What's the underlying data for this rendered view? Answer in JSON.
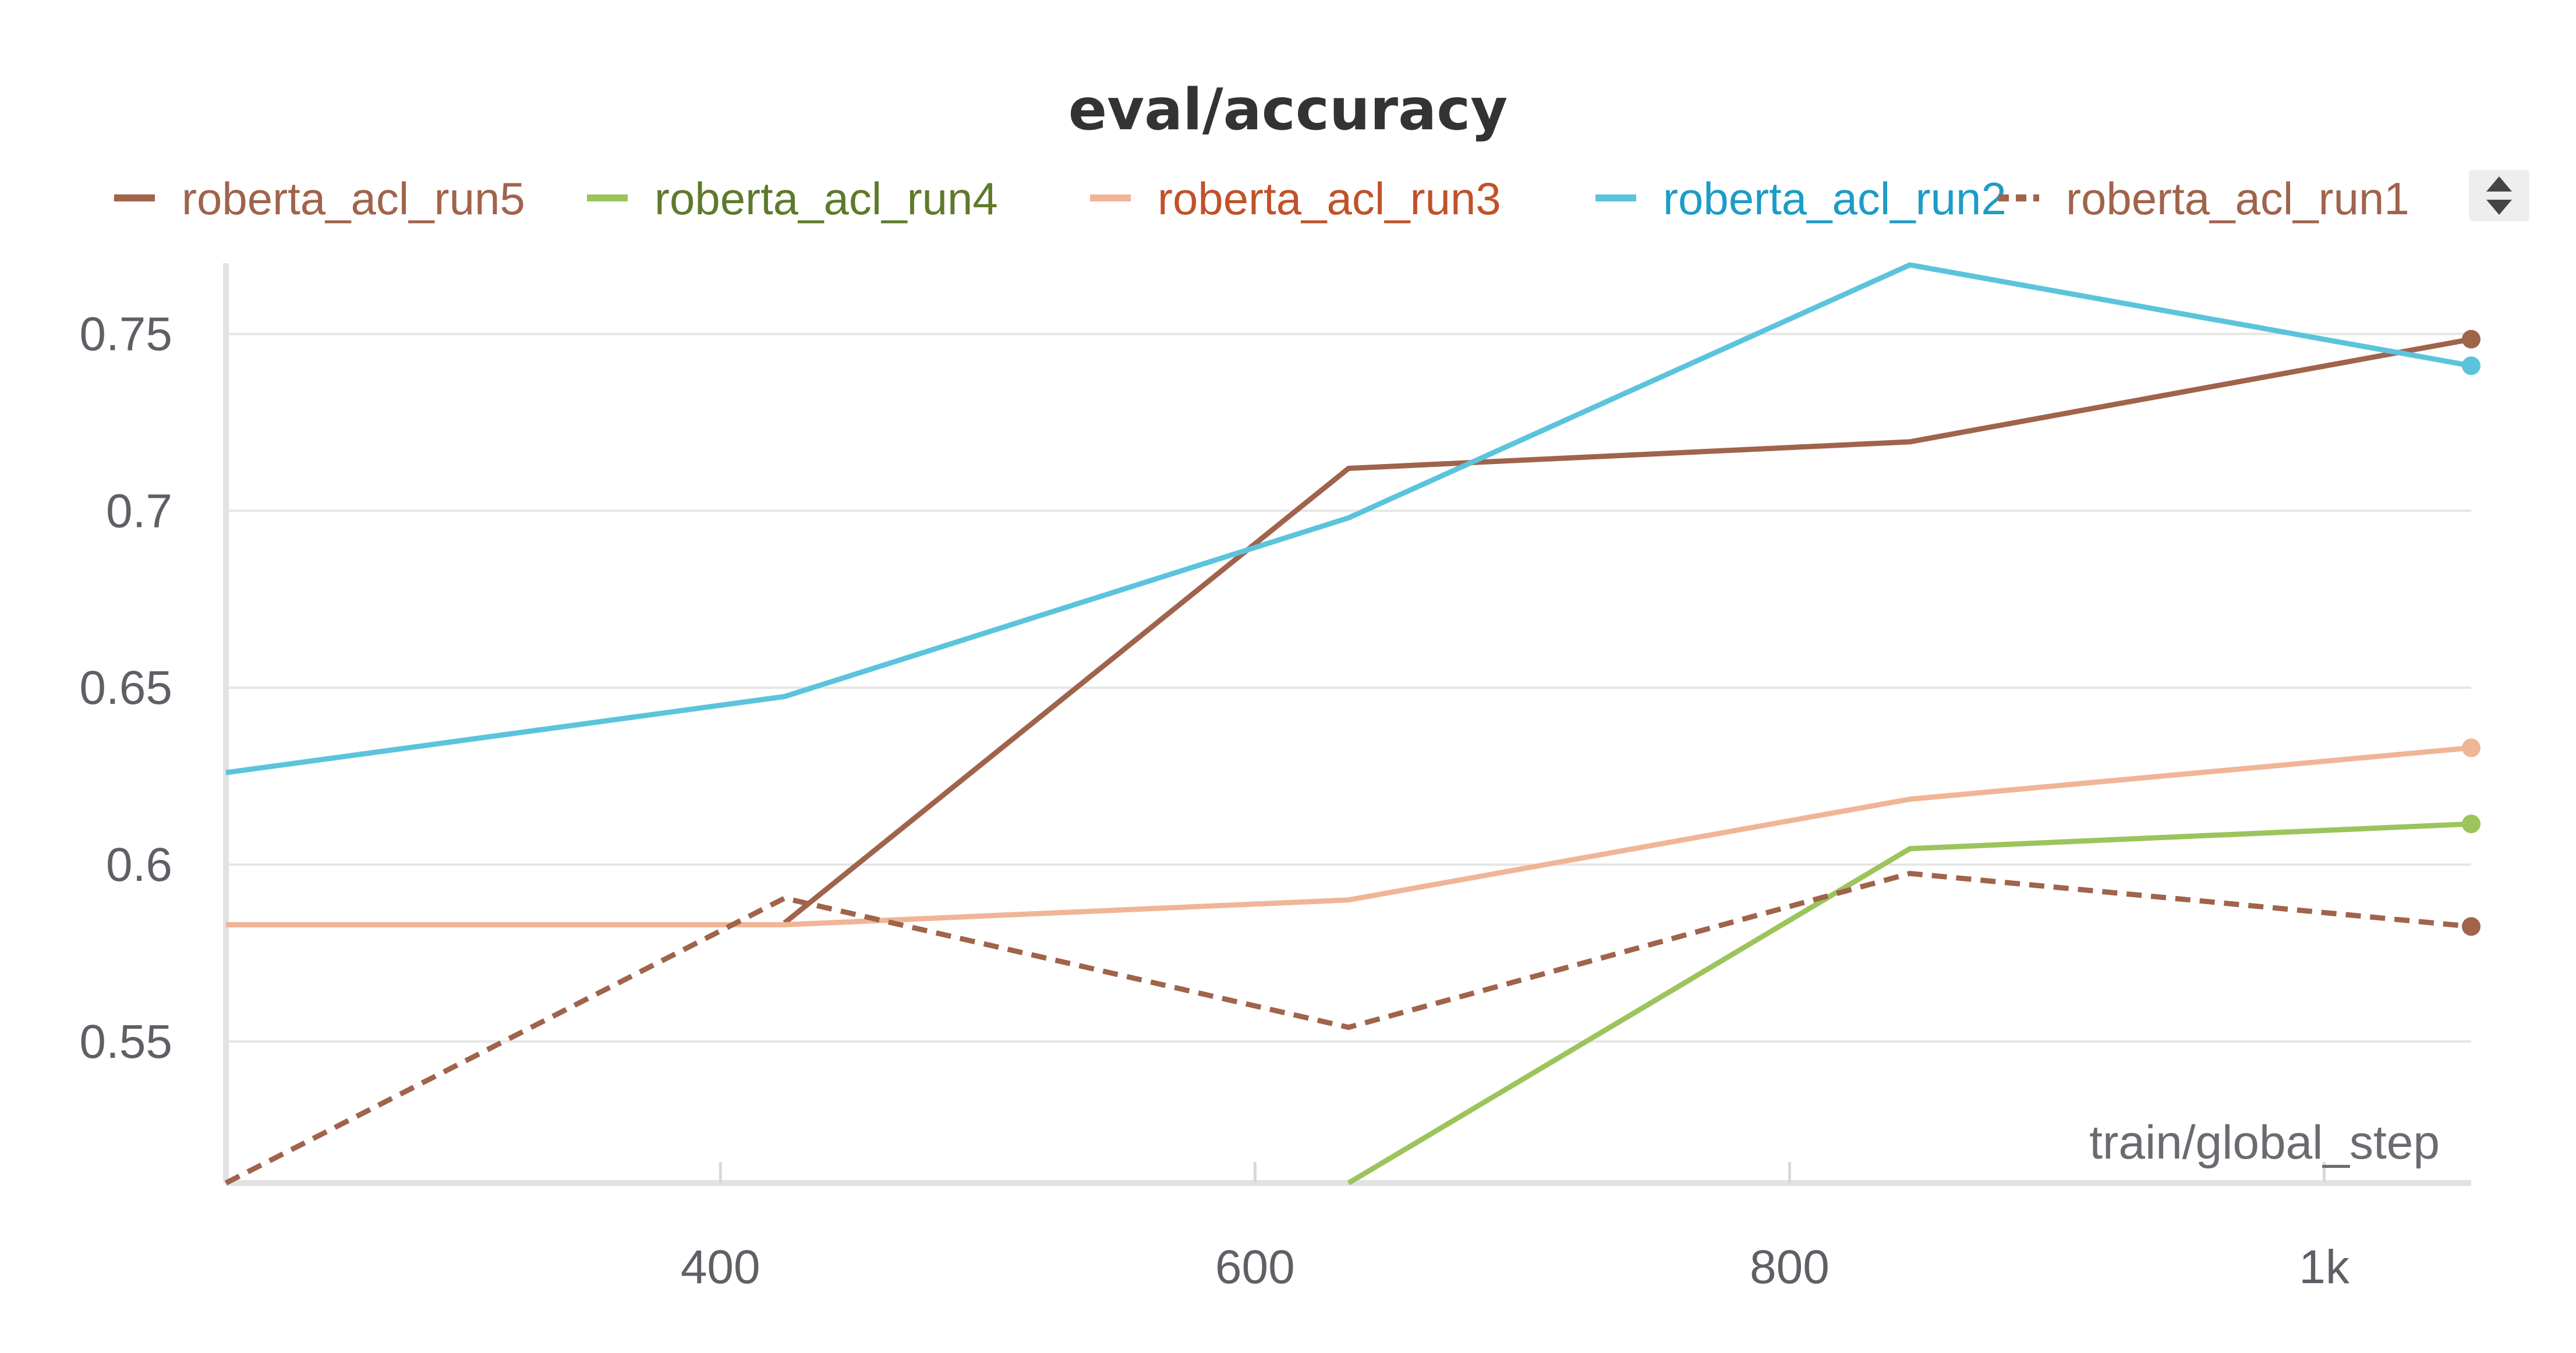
{
  "chart_data": {
    "type": "line",
    "title": "eval/accuracy",
    "xlabel": "train/global_step",
    "ylabel": "",
    "xlim": [
      215,
      1055
    ],
    "ylim": [
      0.51,
      0.77
    ],
    "x_ticks": [
      {
        "value": 400,
        "label": "400"
      },
      {
        "value": 600,
        "label": "600"
      },
      {
        "value": 800,
        "label": "800"
      },
      {
        "value": 1000,
        "label": "1k"
      }
    ],
    "y_ticks": [
      {
        "value": 0.55,
        "label": "0.55"
      },
      {
        "value": 0.6,
        "label": "0.6"
      },
      {
        "value": 0.65,
        "label": "0.65"
      },
      {
        "value": 0.7,
        "label": "0.7"
      },
      {
        "value": 0.75,
        "label": "0.75"
      }
    ],
    "grid": true,
    "legend_position": "top",
    "series": [
      {
        "name": "roberta_acl_run5",
        "color": "#a0634b",
        "label_color": "#a0634b",
        "dash": false,
        "points": [
          [
            424,
            0.5835
          ],
          [
            635,
            0.712
          ],
          [
            845,
            0.7195
          ],
          [
            1055,
            0.7485
          ]
        ]
      },
      {
        "name": "roberta_acl_run4",
        "color": "#9cc45c",
        "label_color": "#5e7a2c",
        "dash": false,
        "points": [
          [
            635,
            0.51
          ],
          [
            845,
            0.6045
          ],
          [
            1055,
            0.6115
          ]
        ]
      },
      {
        "name": "roberta_acl_run3",
        "color": "#f0b596",
        "label_color": "#c0522a",
        "dash": false,
        "points": [
          [
            215,
            0.583
          ],
          [
            424,
            0.583
          ],
          [
            635,
            0.59
          ],
          [
            845,
            0.6185
          ],
          [
            1055,
            0.633
          ]
        ]
      },
      {
        "name": "roberta_acl_run2",
        "color": "#5bc4dc",
        "label_color": "#1c9cc6",
        "dash": false,
        "points": [
          [
            215,
            0.626
          ],
          [
            424,
            0.6475
          ],
          [
            635,
            0.698
          ],
          [
            845,
            0.7695
          ],
          [
            1055,
            0.741
          ]
        ]
      },
      {
        "name": "roberta_acl_run1",
        "color": "#a0634b",
        "label_color": "#a0634b",
        "dash": true,
        "points": [
          [
            215,
            0.51
          ],
          [
            424,
            0.5905
          ],
          [
            635,
            0.554
          ],
          [
            845,
            0.5975
          ],
          [
            1055,
            0.5825
          ]
        ]
      }
    ]
  }
}
